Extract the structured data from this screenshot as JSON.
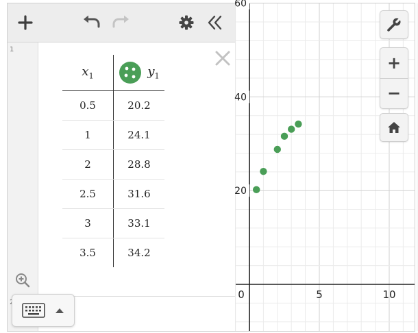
{
  "expression_list": {
    "row_numbers": [
      "1",
      "2"
    ],
    "table": {
      "columns": [
        {
          "var": "x",
          "sub": "1"
        },
        {
          "var": "y",
          "sub": "1",
          "point_color": "#4a9e57"
        }
      ],
      "rows": [
        [
          "0.5",
          "20.2"
        ],
        [
          "1",
          "24.1"
        ],
        [
          "2",
          "28.8"
        ],
        [
          "2.5",
          "31.6"
        ],
        [
          "3",
          "33.1"
        ],
        [
          "3.5",
          "34.2"
        ]
      ]
    }
  },
  "icons": {
    "add": "plus-icon",
    "undo": "undo-icon",
    "redo": "redo-icon",
    "settings": "gear-icon",
    "collapse": "double-chevron-left-icon",
    "close": "close-icon",
    "zoom": "zoom-in-icon",
    "keyboard": "keyboard-icon",
    "wrench": "wrench-icon",
    "home": "home-icon"
  },
  "graph": {
    "x_ticks": [
      "0",
      "5",
      "10"
    ],
    "y_ticks": [
      "20",
      "40",
      "60"
    ],
    "zoom_in_label": "+",
    "zoom_out_label": "−",
    "point_color": "#4a9e57",
    "points": [
      [
        0.5,
        20.2
      ],
      [
        1,
        24.1
      ],
      [
        2,
        28.8
      ],
      [
        2.5,
        31.6
      ],
      [
        3,
        33.1
      ],
      [
        3.5,
        34.2
      ]
    ]
  }
}
